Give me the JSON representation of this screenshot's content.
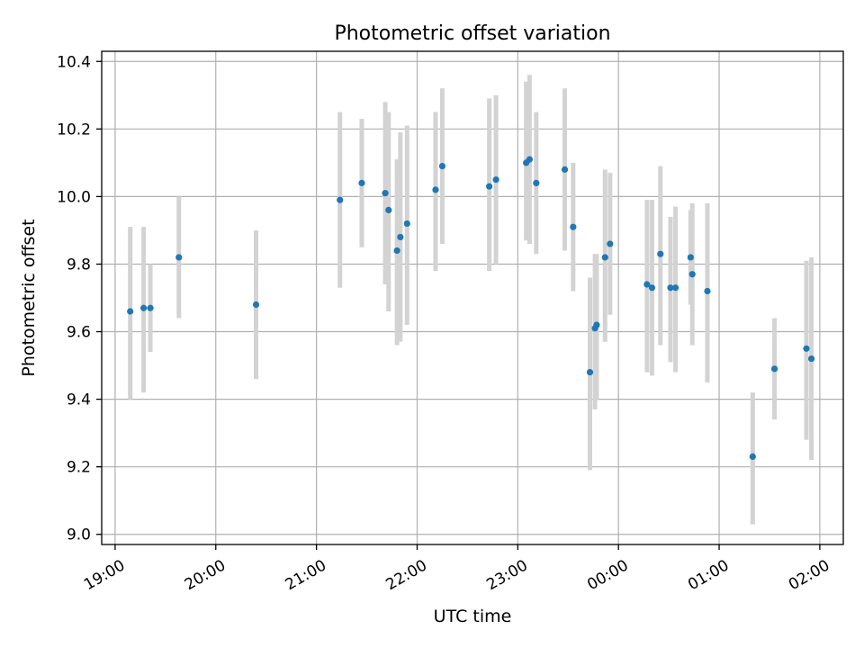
{
  "chart_data": {
    "type": "scatter",
    "title": "Photometric offset variation",
    "xlabel": "UTC time",
    "ylabel": "Photometric offset",
    "x_unit": "UTC time (hours, after 24:00 wraps to next day)",
    "xlim": [
      "18:52",
      "02:14"
    ],
    "ylim": [
      8.97,
      10.43
    ],
    "x_ticks": [
      "19:00",
      "20:00",
      "21:00",
      "22:00",
      "23:00",
      "00:00",
      "01:00",
      "02:00"
    ],
    "y_ticks": [
      "9.0",
      "9.2",
      "9.4",
      "9.6",
      "9.8",
      "10.0",
      "10.2",
      "10.4"
    ],
    "grid": true,
    "colors": {
      "point": "#1f77b4",
      "errorbar": "#d3d3d3"
    },
    "points": [
      {
        "x": "19:09",
        "y": 9.66,
        "lo": 9.4,
        "hi": 9.91
      },
      {
        "x": "19:17",
        "y": 9.67,
        "lo": 9.42,
        "hi": 9.91
      },
      {
        "x": "19:21",
        "y": 9.67,
        "lo": 9.54,
        "hi": 9.8
      },
      {
        "x": "19:38",
        "y": 9.82,
        "lo": 9.64,
        "hi": 10.0
      },
      {
        "x": "20:24",
        "y": 9.68,
        "lo": 9.46,
        "hi": 9.9
      },
      {
        "x": "21:14",
        "y": 9.99,
        "lo": 9.73,
        "hi": 10.25
      },
      {
        "x": "21:27",
        "y": 10.04,
        "lo": 9.85,
        "hi": 10.23
      },
      {
        "x": "21:41",
        "y": 10.01,
        "lo": 9.74,
        "hi": 10.28
      },
      {
        "x": "21:43",
        "y": 9.96,
        "lo": 9.66,
        "hi": 10.25
      },
      {
        "x": "21:48",
        "y": 9.84,
        "lo": 9.56,
        "hi": 10.11
      },
      {
        "x": "21:50",
        "y": 9.88,
        "lo": 9.57,
        "hi": 10.19
      },
      {
        "x": "21:54",
        "y": 9.92,
        "lo": 9.62,
        "hi": 10.21
      },
      {
        "x": "22:11",
        "y": 10.02,
        "lo": 9.78,
        "hi": 10.25
      },
      {
        "x": "22:15",
        "y": 10.09,
        "lo": 9.86,
        "hi": 10.32
      },
      {
        "x": "22:43",
        "y": 10.03,
        "lo": 9.78,
        "hi": 10.29
      },
      {
        "x": "22:47",
        "y": 10.05,
        "lo": 9.8,
        "hi": 10.3
      },
      {
        "x": "23:05",
        "y": 10.1,
        "lo": 9.87,
        "hi": 10.34
      },
      {
        "x": "23:07",
        "y": 10.11,
        "lo": 9.86,
        "hi": 10.36
      },
      {
        "x": "23:11",
        "y": 10.04,
        "lo": 9.83,
        "hi": 10.25
      },
      {
        "x": "23:28",
        "y": 10.08,
        "lo": 9.84,
        "hi": 10.32
      },
      {
        "x": "23:33",
        "y": 9.91,
        "lo": 9.72,
        "hi": 10.1
      },
      {
        "x": "23:43",
        "y": 9.48,
        "lo": 9.19,
        "hi": 9.76
      },
      {
        "x": "23:46",
        "y": 9.61,
        "lo": 9.37,
        "hi": 9.83
      },
      {
        "x": "23:47",
        "y": 9.62,
        "lo": 9.4,
        "hi": 9.83
      },
      {
        "x": "23:52",
        "y": 9.82,
        "lo": 9.57,
        "hi": 10.08
      },
      {
        "x": "23:55",
        "y": 9.86,
        "lo": 9.65,
        "hi": 10.07
      },
      {
        "x": "00:17",
        "y": 9.74,
        "lo": 9.48,
        "hi": 9.99
      },
      {
        "x": "00:20",
        "y": 9.73,
        "lo": 9.47,
        "hi": 9.99
      },
      {
        "x": "00:25",
        "y": 9.83,
        "lo": 9.56,
        "hi": 10.09
      },
      {
        "x": "00:31",
        "y": 9.73,
        "lo": 9.51,
        "hi": 9.94
      },
      {
        "x": "00:34",
        "y": 9.73,
        "lo": 9.48,
        "hi": 9.97
      },
      {
        "x": "00:43",
        "y": 9.82,
        "lo": 9.68,
        "hi": 9.96
      },
      {
        "x": "00:44",
        "y": 9.77,
        "lo": 9.56,
        "hi": 9.98
      },
      {
        "x": "00:53",
        "y": 9.72,
        "lo": 9.45,
        "hi": 9.98
      },
      {
        "x": "01:20",
        "y": 9.23,
        "lo": 9.03,
        "hi": 9.42
      },
      {
        "x": "01:33",
        "y": 9.49,
        "lo": 9.34,
        "hi": 9.64
      },
      {
        "x": "01:52",
        "y": 9.55,
        "lo": 9.28,
        "hi": 9.81
      },
      {
        "x": "01:55",
        "y": 9.52,
        "lo": 9.22,
        "hi": 9.82
      }
    ]
  }
}
